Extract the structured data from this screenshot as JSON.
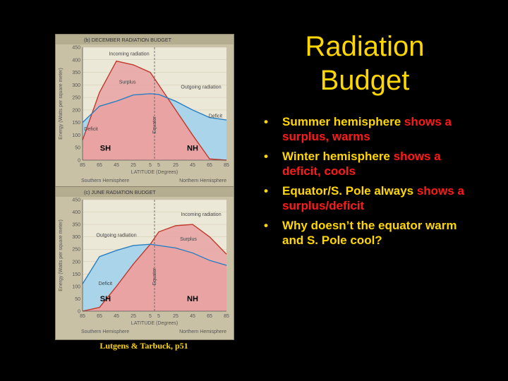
{
  "slide": {
    "title_line1": "Radiation",
    "title_line2": "Budget",
    "bullets": [
      {
        "parts": [
          {
            "text": "Summer hemisphere ",
            "color": "yellow"
          },
          {
            "text": "shows a surplus, warms",
            "color": "red"
          }
        ]
      },
      {
        "parts": [
          {
            "text": "Winter hemisphere ",
            "color": "yellow"
          },
          {
            "text": "shows a deficit, cools",
            "color": "red"
          }
        ]
      },
      {
        "parts": [
          {
            "text": "Equator/S. Pole always ",
            "color": "yellow"
          },
          {
            "text": "shows a surplus/deficit",
            "color": "red"
          }
        ]
      },
      {
        "parts": [
          {
            "text": "Why doesn’t the equator warm and S. Pole cool?",
            "color": "yellow"
          }
        ]
      }
    ],
    "caption": "Lutgens & Tarbuck, p51",
    "colors": {
      "title": "#ffd700",
      "highlight": "#ff1a1a",
      "background": "#000000"
    }
  },
  "chart_data": [
    {
      "type": "line",
      "title": "(b) DECEMBER RADIATION BUDGET",
      "xlabel": "LATITUDE (Degrees)",
      "ylabel": "Energy (Watts per square meter)",
      "x_tick_labels": [
        "85",
        "65",
        "45",
        "25",
        "5",
        "5",
        "25",
        "45",
        "65",
        "85"
      ],
      "x": [
        -85,
        -65,
        -45,
        -25,
        -5,
        5,
        25,
        45,
        65,
        85
      ],
      "ylim": [
        0,
        450
      ],
      "yticks": [
        0,
        50,
        100,
        150,
        200,
        250,
        300,
        350,
        400,
        450
      ],
      "hemisphere_labels": {
        "south": "Southern Hemisphere",
        "north": "Northern Hemisphere"
      },
      "region_labels": {
        "south": "SH",
        "north": "NH"
      },
      "equator_label": "Equator",
      "series": [
        {
          "name": "Incoming radiation",
          "values": [
            80,
            270,
            395,
            380,
            350,
            300,
            200,
            100,
            5,
            0
          ],
          "color": "#c0392b"
        },
        {
          "name": "Outgoing radiation",
          "values": [
            150,
            215,
            235,
            260,
            265,
            262,
            235,
            200,
            170,
            160
          ],
          "color": "#2a7fc1"
        }
      ],
      "annotations": [
        "Surplus",
        "Deficit",
        "Deficit"
      ]
    },
    {
      "type": "line",
      "title": "(c) JUNE RADIATION BUDGET",
      "xlabel": "LATITUDE (Degrees)",
      "ylabel": "Energy (Watts per square meter)",
      "x_tick_labels": [
        "85",
        "65",
        "45",
        "25",
        "5",
        "5",
        "25",
        "45",
        "65",
        "85"
      ],
      "x": [
        -85,
        -65,
        -45,
        -25,
        -5,
        5,
        25,
        45,
        65,
        85
      ],
      "ylim": [
        0,
        450
      ],
      "yticks": [
        0,
        50,
        100,
        150,
        200,
        250,
        300,
        350,
        400,
        450
      ],
      "hemisphere_labels": {
        "south": "Southern Hemisphere",
        "north": "Northern Hemisphere"
      },
      "region_labels": {
        "south": "SH",
        "north": "NH"
      },
      "equator_label": "Equator",
      "series": [
        {
          "name": "Incoming radiation",
          "values": [
            0,
            15,
            100,
            190,
            270,
            320,
            345,
            350,
            300,
            230
          ],
          "color": "#c0392b"
        },
        {
          "name": "Outgoing radiation",
          "values": [
            110,
            220,
            245,
            265,
            270,
            265,
            255,
            235,
            205,
            185
          ],
          "color": "#2a7fc1"
        }
      ],
      "annotations": [
        "Surplus",
        "Deficit"
      ]
    }
  ]
}
